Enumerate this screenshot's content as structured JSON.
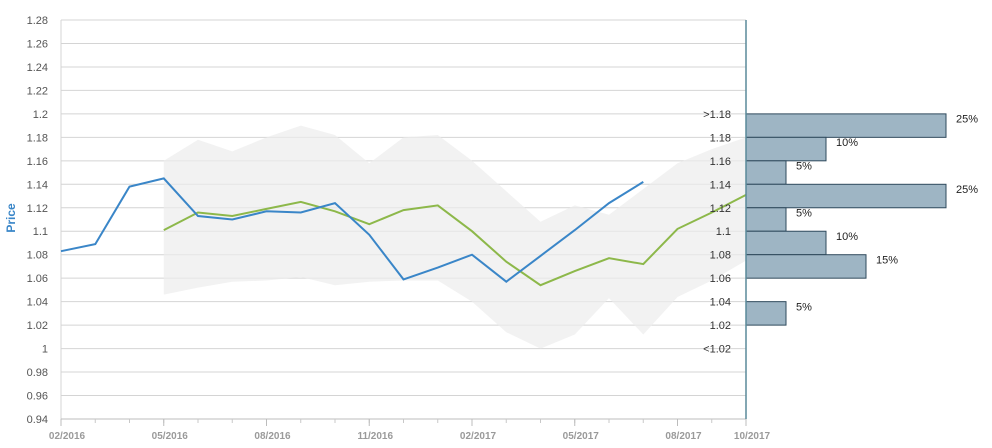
{
  "chart_data": {
    "type": "line",
    "ylabel": "Price",
    "xlabel": "",
    "ylim": [
      0.94,
      1.28
    ],
    "y_ticks": [
      "1.28",
      "1.26",
      "1.24",
      "1.22",
      "1.2",
      "1.18",
      "1.16",
      "1.14",
      "1.12",
      "1.1",
      "1.08",
      "1.06",
      "1.04",
      "1.02",
      "1",
      "0.98",
      "0.96",
      "0.94"
    ],
    "x_ticks": [
      "02/2016",
      "05/2016",
      "08/2016",
      "11/2016",
      "02/2017",
      "05/2017",
      "08/2017",
      "10/2017"
    ],
    "x_range": [
      "2016-02",
      "2017-10"
    ],
    "grid": true,
    "colors": {
      "actual": "#3a86c8",
      "forecast": "#8db84a",
      "band": "#ececec",
      "bar_fill": "#9eb5c4",
      "bar_stroke": "#2f4a5c",
      "axis": "#5a8a9a"
    },
    "series": [
      {
        "key": "actual",
        "points": [
          [
            "2016-02",
            1.083
          ],
          [
            "2016-03",
            1.089
          ],
          [
            "2016-04",
            1.138
          ],
          [
            "2016-05",
            1.145
          ],
          [
            "2016-06",
            1.113
          ],
          [
            "2016-07",
            1.11
          ],
          [
            "2016-08",
            1.117
          ],
          [
            "2016-09",
            1.116
          ],
          [
            "2016-10",
            1.124
          ],
          [
            "2016-11",
            1.097
          ],
          [
            "2016-12",
            1.059
          ],
          [
            "2017-01",
            1.069
          ],
          [
            "2017-02",
            1.08
          ],
          [
            "2017-03",
            1.057
          ],
          [
            "2017-04",
            1.079
          ],
          [
            "2017-05",
            1.101
          ],
          [
            "2017-06",
            1.124
          ],
          [
            "2017-07",
            1.142
          ]
        ]
      },
      {
        "key": "forecast",
        "points": [
          [
            "2016-05",
            1.101
          ],
          [
            "2016-06",
            1.116
          ],
          [
            "2016-07",
            1.113
          ],
          [
            "2016-08",
            1.119
          ],
          [
            "2016-09",
            1.125
          ],
          [
            "2016-10",
            1.117
          ],
          [
            "2016-11",
            1.106
          ],
          [
            "2016-12",
            1.118
          ],
          [
            "2017-01",
            1.122
          ],
          [
            "2017-02",
            1.1
          ],
          [
            "2017-03",
            1.074
          ],
          [
            "2017-04",
            1.054
          ],
          [
            "2017-05",
            1.066
          ],
          [
            "2017-06",
            1.077
          ],
          [
            "2017-07",
            1.072
          ],
          [
            "2017-08",
            1.102
          ],
          [
            "2017-09",
            1.116
          ],
          [
            "2017-10",
            1.131
          ]
        ]
      }
    ],
    "band": {
      "upper": [
        [
          "2016-05",
          1.16
        ],
        [
          "2016-06",
          1.178
        ],
        [
          "2016-07",
          1.168
        ],
        [
          "2016-08",
          1.18
        ],
        [
          "2016-09",
          1.19
        ],
        [
          "2016-10",
          1.182
        ],
        [
          "2016-11",
          1.158
        ],
        [
          "2016-12",
          1.18
        ],
        [
          "2017-01",
          1.182
        ],
        [
          "2017-02",
          1.16
        ],
        [
          "2017-03",
          1.134
        ],
        [
          "2017-04",
          1.108
        ],
        [
          "2017-05",
          1.122
        ],
        [
          "2017-06",
          1.114
        ],
        [
          "2017-07",
          1.136
        ],
        [
          "2017-08",
          1.158
        ],
        [
          "2017-09",
          1.17
        ],
        [
          "2017-10",
          1.18
        ]
      ],
      "lower": [
        [
          "2016-05",
          1.046
        ],
        [
          "2016-06",
          1.052
        ],
        [
          "2016-07",
          1.057
        ],
        [
          "2016-08",
          1.058
        ],
        [
          "2016-09",
          1.061
        ],
        [
          "2016-10",
          1.054
        ],
        [
          "2016-11",
          1.057
        ],
        [
          "2016-12",
          1.058
        ],
        [
          "2017-01",
          1.058
        ],
        [
          "2017-02",
          1.04
        ],
        [
          "2017-03",
          1.014
        ],
        [
          "2017-04",
          1.0
        ],
        [
          "2017-05",
          1.012
        ],
        [
          "2017-06",
          1.043
        ],
        [
          "2017-07",
          1.012
        ],
        [
          "2017-08",
          1.044
        ],
        [
          "2017-09",
          1.058
        ],
        [
          "2017-10",
          1.075
        ]
      ]
    },
    "distribution": [
      {
        "label": ">1.18",
        "low": 1.18,
        "high": 1.2,
        "percent": 25,
        "pct_label": "25%"
      },
      {
        "label": "1.18",
        "low": 1.16,
        "high": 1.18,
        "percent": 10,
        "pct_label": "10%"
      },
      {
        "label": "1.16",
        "low": 1.14,
        "high": 1.16,
        "percent": 5,
        "pct_label": "5%"
      },
      {
        "label": "1.14",
        "low": 1.12,
        "high": 1.14,
        "percent": 25,
        "pct_label": "25%"
      },
      {
        "label": "1.12",
        "low": 1.1,
        "high": 1.12,
        "percent": 5,
        "pct_label": "5%"
      },
      {
        "label": "1.1",
        "low": 1.08,
        "high": 1.1,
        "percent": 10,
        "pct_label": "10%"
      },
      {
        "label": "1.08",
        "low": 1.06,
        "high": 1.08,
        "percent": 15,
        "pct_label": "15%"
      },
      {
        "label": "1.06",
        "low": 1.04,
        "high": 1.06,
        "percent": 0,
        "pct_label": ""
      },
      {
        "label": "1.04",
        "low": 1.02,
        "high": 1.04,
        "percent": 5,
        "pct_label": "5%"
      },
      {
        "label": "1.02",
        "low": 1.0,
        "high": 1.02,
        "percent": 0,
        "pct_label": ""
      },
      {
        "label": "<1.02",
        "low": 0.98,
        "high": 1.0,
        "percent": 0,
        "pct_label": ""
      }
    ]
  }
}
